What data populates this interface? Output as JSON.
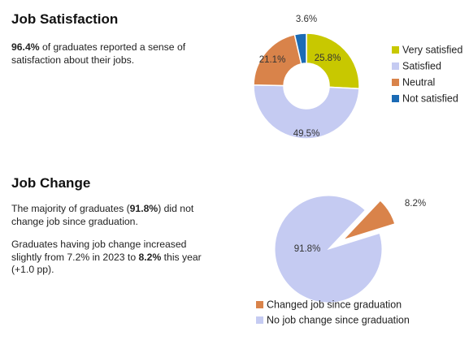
{
  "job_satisfaction": {
    "title": "Job Satisfaction",
    "text_highlight": "96.4%",
    "text_rest": " of graduates reported a sense of satisfaction about their jobs."
  },
  "job_change": {
    "title": "Job Change",
    "p1_before": "The majority of graduates (",
    "p1_highlight": "91.8%",
    "p1_after": ") did not change job since graduation.",
    "p2_before": "Graduates having job change increased slightly from 7.2% in 2023 to ",
    "p2_highlight": "8.2%",
    "p2_after": " this year (+1.0 pp)."
  },
  "chart_data": [
    {
      "type": "pie",
      "variant": "donut",
      "categories": [
        "Very satisfied",
        "Satisfied",
        "Neutral",
        "Not satisfied"
      ],
      "values": [
        25.8,
        49.5,
        21.1,
        3.6
      ],
      "labels": [
        "25.8%",
        "49.5%",
        "21.1%",
        "3.6%"
      ],
      "colors": [
        "#c8c800",
        "#c5cbf2",
        "#d9834a",
        "#1b6bb5"
      ],
      "legend_position": "right"
    },
    {
      "type": "pie",
      "variant": "exploded",
      "categories": [
        "Changed job since graduation",
        "No job change since graduation"
      ],
      "values": [
        8.2,
        91.8
      ],
      "labels": [
        "8.2%",
        "91.8%"
      ],
      "colors": [
        "#d9834a",
        "#c5cbf2"
      ],
      "legend_position": "bottom"
    }
  ]
}
